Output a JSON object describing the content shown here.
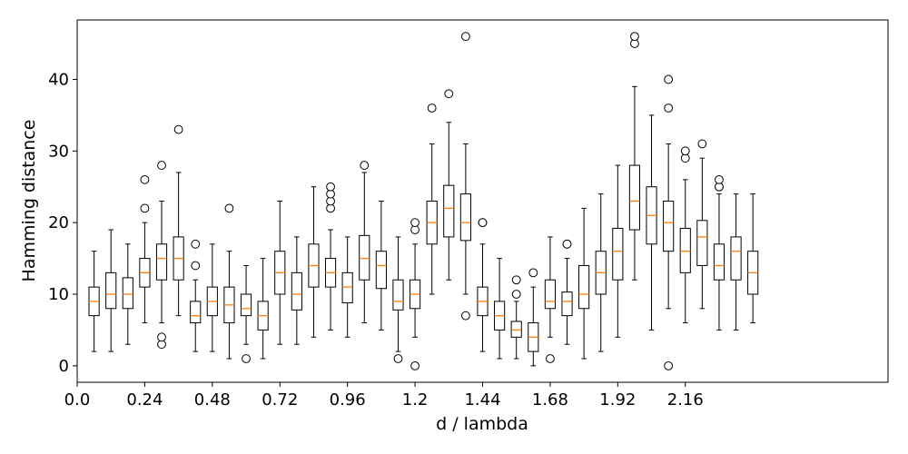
{
  "chart_data": {
    "type": "box",
    "xlabel": "d / lambda",
    "ylabel": "Hamming distance",
    "xlim": [
      0.0,
      2.88
    ],
    "ylim": [
      -2.3,
      48.3
    ],
    "xticks": [
      0.0,
      0.24,
      0.48,
      0.72,
      0.96,
      1.2,
      1.44,
      1.68,
      1.92,
      2.16
    ],
    "xtick_labels": [
      "0.0",
      "0.24",
      "0.48",
      "0.72",
      "0.96",
      "1.2",
      "1.44",
      "1.68",
      "1.92",
      "2.16"
    ],
    "yticks": [
      0,
      10,
      20,
      30,
      40
    ],
    "ytick_labels": [
      "0",
      "10",
      "20",
      "30",
      "40"
    ],
    "box_width": 0.036,
    "colors": {
      "median": "#ff7f0e",
      "box": "#000000",
      "outlier_fill": "#ffffff"
    },
    "boxes": [
      {
        "x": 0.06,
        "whislo": 2,
        "q1": 7,
        "med": 9,
        "q3": 11,
        "whishi": 16,
        "fliers": []
      },
      {
        "x": 0.12,
        "whislo": 2,
        "q1": 8,
        "med": 10,
        "q3": 13,
        "whishi": 19,
        "fliers": []
      },
      {
        "x": 0.18,
        "whislo": 3,
        "q1": 8,
        "med": 10,
        "q3": 12.3,
        "whishi": 17,
        "fliers": []
      },
      {
        "x": 0.24,
        "whislo": 6,
        "q1": 11,
        "med": 13,
        "q3": 15,
        "whishi": 20,
        "fliers": [
          22,
          26
        ]
      },
      {
        "x": 0.3,
        "whislo": 6,
        "q1": 12,
        "med": 15,
        "q3": 17,
        "whishi": 23,
        "fliers": [
          3,
          4,
          28
        ]
      },
      {
        "x": 0.36,
        "whislo": 7,
        "q1": 12,
        "med": 15,
        "q3": 18,
        "whishi": 27,
        "fliers": [
          33
        ]
      },
      {
        "x": 0.42,
        "whislo": 2,
        "q1": 6,
        "med": 7,
        "q3": 9,
        "whishi": 12,
        "fliers": [
          14,
          17
        ]
      },
      {
        "x": 0.48,
        "whislo": 2,
        "q1": 7,
        "med": 9,
        "q3": 11,
        "whishi": 17,
        "fliers": []
      },
      {
        "x": 0.54,
        "whislo": 1,
        "q1": 6,
        "med": 8.5,
        "q3": 11,
        "whishi": 16,
        "fliers": [
          22
        ]
      },
      {
        "x": 0.6,
        "whislo": 3,
        "q1": 7,
        "med": 8,
        "q3": 10,
        "whishi": 14,
        "fliers": [
          1
        ]
      },
      {
        "x": 0.66,
        "whislo": 1,
        "q1": 5,
        "med": 7,
        "q3": 9,
        "whishi": 15,
        "fliers": []
      },
      {
        "x": 0.72,
        "whislo": 3,
        "q1": 10,
        "med": 13,
        "q3": 16,
        "whishi": 23,
        "fliers": []
      },
      {
        "x": 0.78,
        "whislo": 3,
        "q1": 7.8,
        "med": 10,
        "q3": 13,
        "whishi": 18,
        "fliers": []
      },
      {
        "x": 0.84,
        "whislo": 4,
        "q1": 11,
        "med": 14,
        "q3": 17,
        "whishi": 25,
        "fliers": []
      },
      {
        "x": 0.9,
        "whislo": 5,
        "q1": 11,
        "med": 13,
        "q3": 15,
        "whishi": 19,
        "fliers": [
          22,
          23,
          24,
          25
        ]
      },
      {
        "x": 0.96,
        "whislo": 4,
        "q1": 8.8,
        "med": 11,
        "q3": 13,
        "whishi": 18,
        "fliers": []
      },
      {
        "x": 1.02,
        "whislo": 6,
        "q1": 12,
        "med": 15,
        "q3": 18.2,
        "whishi": 27,
        "fliers": [
          28
        ]
      },
      {
        "x": 1.08,
        "whislo": 5,
        "q1": 10.8,
        "med": 14,
        "q3": 16,
        "whishi": 23,
        "fliers": []
      },
      {
        "x": 1.14,
        "whislo": 2,
        "q1": 7.8,
        "med": 9,
        "q3": 12,
        "whishi": 18,
        "fliers": [
          1
        ]
      },
      {
        "x": 1.2,
        "whislo": 4,
        "q1": 8,
        "med": 10,
        "q3": 12,
        "whishi": 17,
        "fliers": [
          0,
          19,
          20
        ]
      },
      {
        "x": 1.26,
        "whislo": 10,
        "q1": 17,
        "med": 20,
        "q3": 23,
        "whishi": 31,
        "fliers": [
          36
        ]
      },
      {
        "x": 1.32,
        "whislo": 12,
        "q1": 18,
        "med": 22,
        "q3": 25.2,
        "whishi": 34,
        "fliers": [
          38
        ]
      },
      {
        "x": 1.38,
        "whislo": 10,
        "q1": 17.5,
        "med": 20,
        "q3": 24,
        "whishi": 31,
        "fliers": [
          7,
          46
        ]
      },
      {
        "x": 1.44,
        "whislo": 2,
        "q1": 7,
        "med": 9,
        "q3": 11,
        "whishi": 17,
        "fliers": [
          20,
          20
        ]
      },
      {
        "x": 1.5,
        "whislo": 1,
        "q1": 5,
        "med": 7,
        "q3": 9,
        "whishi": 15,
        "fliers": []
      },
      {
        "x": 1.56,
        "whislo": 1,
        "q1": 4,
        "med": 5,
        "q3": 6.2,
        "whishi": 9,
        "fliers": [
          10,
          12
        ]
      },
      {
        "x": 1.62,
        "whislo": 0,
        "q1": 2,
        "med": 4,
        "q3": 6,
        "whishi": 11,
        "fliers": [
          13
        ]
      },
      {
        "x": 1.68,
        "whislo": 4,
        "q1": 8,
        "med": 9,
        "q3": 12,
        "whishi": 18,
        "fliers": [
          1
        ]
      },
      {
        "x": 1.74,
        "whislo": 3,
        "q1": 7,
        "med": 9,
        "q3": 10.3,
        "whishi": 15,
        "fliers": [
          17,
          17
        ]
      },
      {
        "x": 1.8,
        "whislo": 1,
        "q1": 8,
        "med": 10,
        "q3": 14,
        "whishi": 22,
        "fliers": []
      },
      {
        "x": 1.86,
        "whislo": 2,
        "q1": 10,
        "med": 13,
        "q3": 16,
        "whishi": 24,
        "fliers": []
      },
      {
        "x": 1.92,
        "whislo": 4,
        "q1": 12,
        "med": 16,
        "q3": 19.2,
        "whishi": 28,
        "fliers": []
      },
      {
        "x": 1.98,
        "whislo": 12,
        "q1": 19,
        "med": 23,
        "q3": 28,
        "whishi": 39,
        "fliers": [
          45,
          46
        ]
      },
      {
        "x": 2.04,
        "whislo": 5,
        "q1": 17,
        "med": 21,
        "q3": 25,
        "whishi": 35,
        "fliers": []
      },
      {
        "x": 2.1,
        "whislo": 8,
        "q1": 16,
        "med": 20,
        "q3": 23,
        "whishi": 31,
        "fliers": [
          0,
          36,
          40
        ]
      },
      {
        "x": 2.16,
        "whislo": 6,
        "q1": 13,
        "med": 16,
        "q3": 19.2,
        "whishi": 26,
        "fliers": [
          29,
          30
        ]
      },
      {
        "x": 2.22,
        "whislo": 8,
        "q1": 14,
        "med": 18,
        "q3": 20.3,
        "whishi": 29,
        "fliers": [
          31
        ]
      },
      {
        "x": 2.28,
        "whislo": 5,
        "q1": 12,
        "med": 14,
        "q3": 17,
        "whishi": 24,
        "fliers": [
          25,
          25,
          26
        ]
      },
      {
        "x": 2.34,
        "whislo": 5,
        "q1": 12,
        "med": 16,
        "q3": 18,
        "whishi": 24,
        "fliers": []
      },
      {
        "x": 2.4,
        "whislo": 6,
        "q1": 10,
        "med": 13,
        "q3": 16,
        "whishi": 24,
        "fliers": []
      }
    ]
  }
}
